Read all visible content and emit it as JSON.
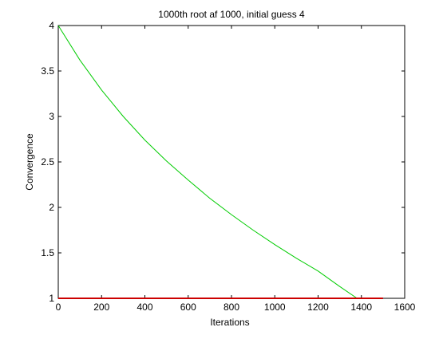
{
  "chart_data": {
    "type": "line",
    "title": "1000th root af 1000, initial guess 4",
    "xlabel": "Iterations",
    "ylabel": "Convergence",
    "xlim": [
      0,
      1600
    ],
    "ylim": [
      1,
      4
    ],
    "xticks": [
      0,
      200,
      400,
      600,
      800,
      1000,
      1200,
      1400,
      1600
    ],
    "yticks": [
      1,
      1.5,
      2,
      2.5,
      3,
      3.5,
      4
    ],
    "ytick_labels": [
      "1",
      "1.5",
      "2",
      "2.5",
      "3",
      "3.5",
      "4"
    ],
    "grid": false,
    "series": [
      {
        "color": "#00cc00",
        "x": [
          0,
          100,
          200,
          300,
          400,
          500,
          600,
          700,
          800,
          900,
          1000,
          1100,
          1200,
          1300,
          1380
        ],
        "y": [
          4.0,
          3.62,
          3.29,
          3.0,
          2.74,
          2.51,
          2.3,
          2.1,
          1.92,
          1.75,
          1.59,
          1.44,
          1.3,
          1.13,
          1.0
        ]
      },
      {
        "color": "#cc0000",
        "x": [
          0,
          1500
        ],
        "y": [
          1.0,
          1.0
        ]
      }
    ]
  }
}
